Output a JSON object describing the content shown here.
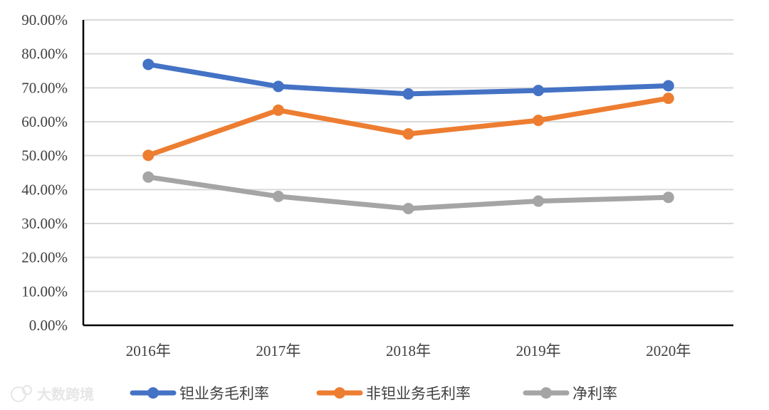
{
  "chart_data": {
    "type": "line",
    "categories": [
      "2016年",
      "2017年",
      "2018年",
      "2019年",
      "2020年"
    ],
    "ylim": [
      0,
      90
    ],
    "yticks": [
      "0.00%",
      "10.00%",
      "20.00%",
      "30.00%",
      "40.00%",
      "50.00%",
      "60.00%",
      "70.00%",
      "80.00%",
      "90.00%"
    ],
    "grid": true,
    "legend_position": "bottom",
    "series": [
      {
        "name": "钽业务毛利率",
        "color": "#4472C4",
        "values": [
          76.9,
          70.4,
          68.2,
          69.2,
          70.6
        ]
      },
      {
        "name": "非钽业务毛利率",
        "color": "#ED7D31",
        "values": [
          50.1,
          63.4,
          56.4,
          60.4,
          66.9
        ]
      },
      {
        "name": "净利率",
        "color": "#A5A5A5",
        "values": [
          43.7,
          38.0,
          34.4,
          36.6,
          37.7
        ]
      }
    ]
  },
  "watermark": {
    "text": "大数跨境"
  }
}
